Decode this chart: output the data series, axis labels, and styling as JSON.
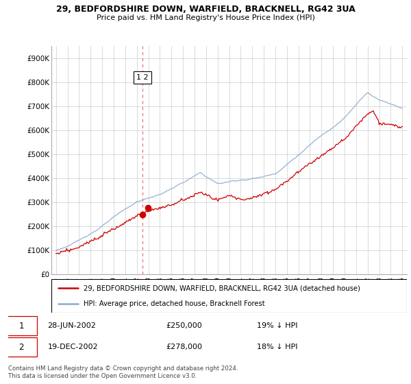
{
  "title1": "29, BEDFORDSHIRE DOWN, WARFIELD, BRACKNELL, RG42 3UA",
  "title2": "Price paid vs. HM Land Registry's House Price Index (HPI)",
  "legend_line1": "29, BEDFORDSHIRE DOWN, WARFIELD, BRACKNELL, RG42 3UA (detached house)",
  "legend_line2": "HPI: Average price, detached house, Bracknell Forest",
  "transaction1_label": "1",
  "transaction1_date": "28-JUN-2002",
  "transaction1_price": "£250,000",
  "transaction1_hpi": "19% ↓ HPI",
  "transaction2_label": "2",
  "transaction2_date": "19-DEC-2002",
  "transaction2_price": "£278,000",
  "transaction2_hpi": "18% ↓ HPI",
  "footnote": "Contains HM Land Registry data © Crown copyright and database right 2024.\nThis data is licensed under the Open Government Licence v3.0.",
  "red_color": "#cc0000",
  "blue_color": "#88aacc",
  "background_color": "#ffffff",
  "grid_color": "#cccccc",
  "ylim": [
    0,
    950000
  ],
  "yticks": [
    0,
    100000,
    200000,
    300000,
    400000,
    500000,
    600000,
    700000,
    800000,
    900000
  ],
  "ytick_labels": [
    "£0",
    "£100K",
    "£200K",
    "£300K",
    "£400K",
    "£500K",
    "£600K",
    "£700K",
    "£800K",
    "£900K"
  ],
  "xlim_start": 1995,
  "xlim_end": 2025
}
